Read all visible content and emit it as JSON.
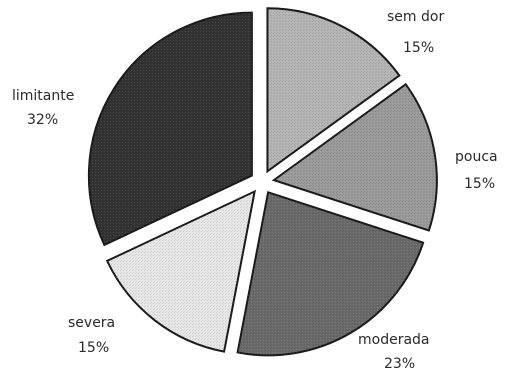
{
  "chart_data": {
    "type": "pie",
    "categories": [
      "sem dor",
      "pouca",
      "moderada",
      "severa",
      "limitante"
    ],
    "values": [
      15,
      15,
      23,
      15,
      32
    ],
    "value_labels": [
      "15%",
      "15%",
      "23%",
      "15%",
      "32%"
    ],
    "colors": [
      "#b4b4b4",
      "#9a9a9a",
      "#6a6a6a",
      "#e6e6e6",
      "#333333"
    ],
    "exploded": true,
    "start_angle_deg": 0,
    "direction": "clockwise",
    "legend": "none"
  }
}
